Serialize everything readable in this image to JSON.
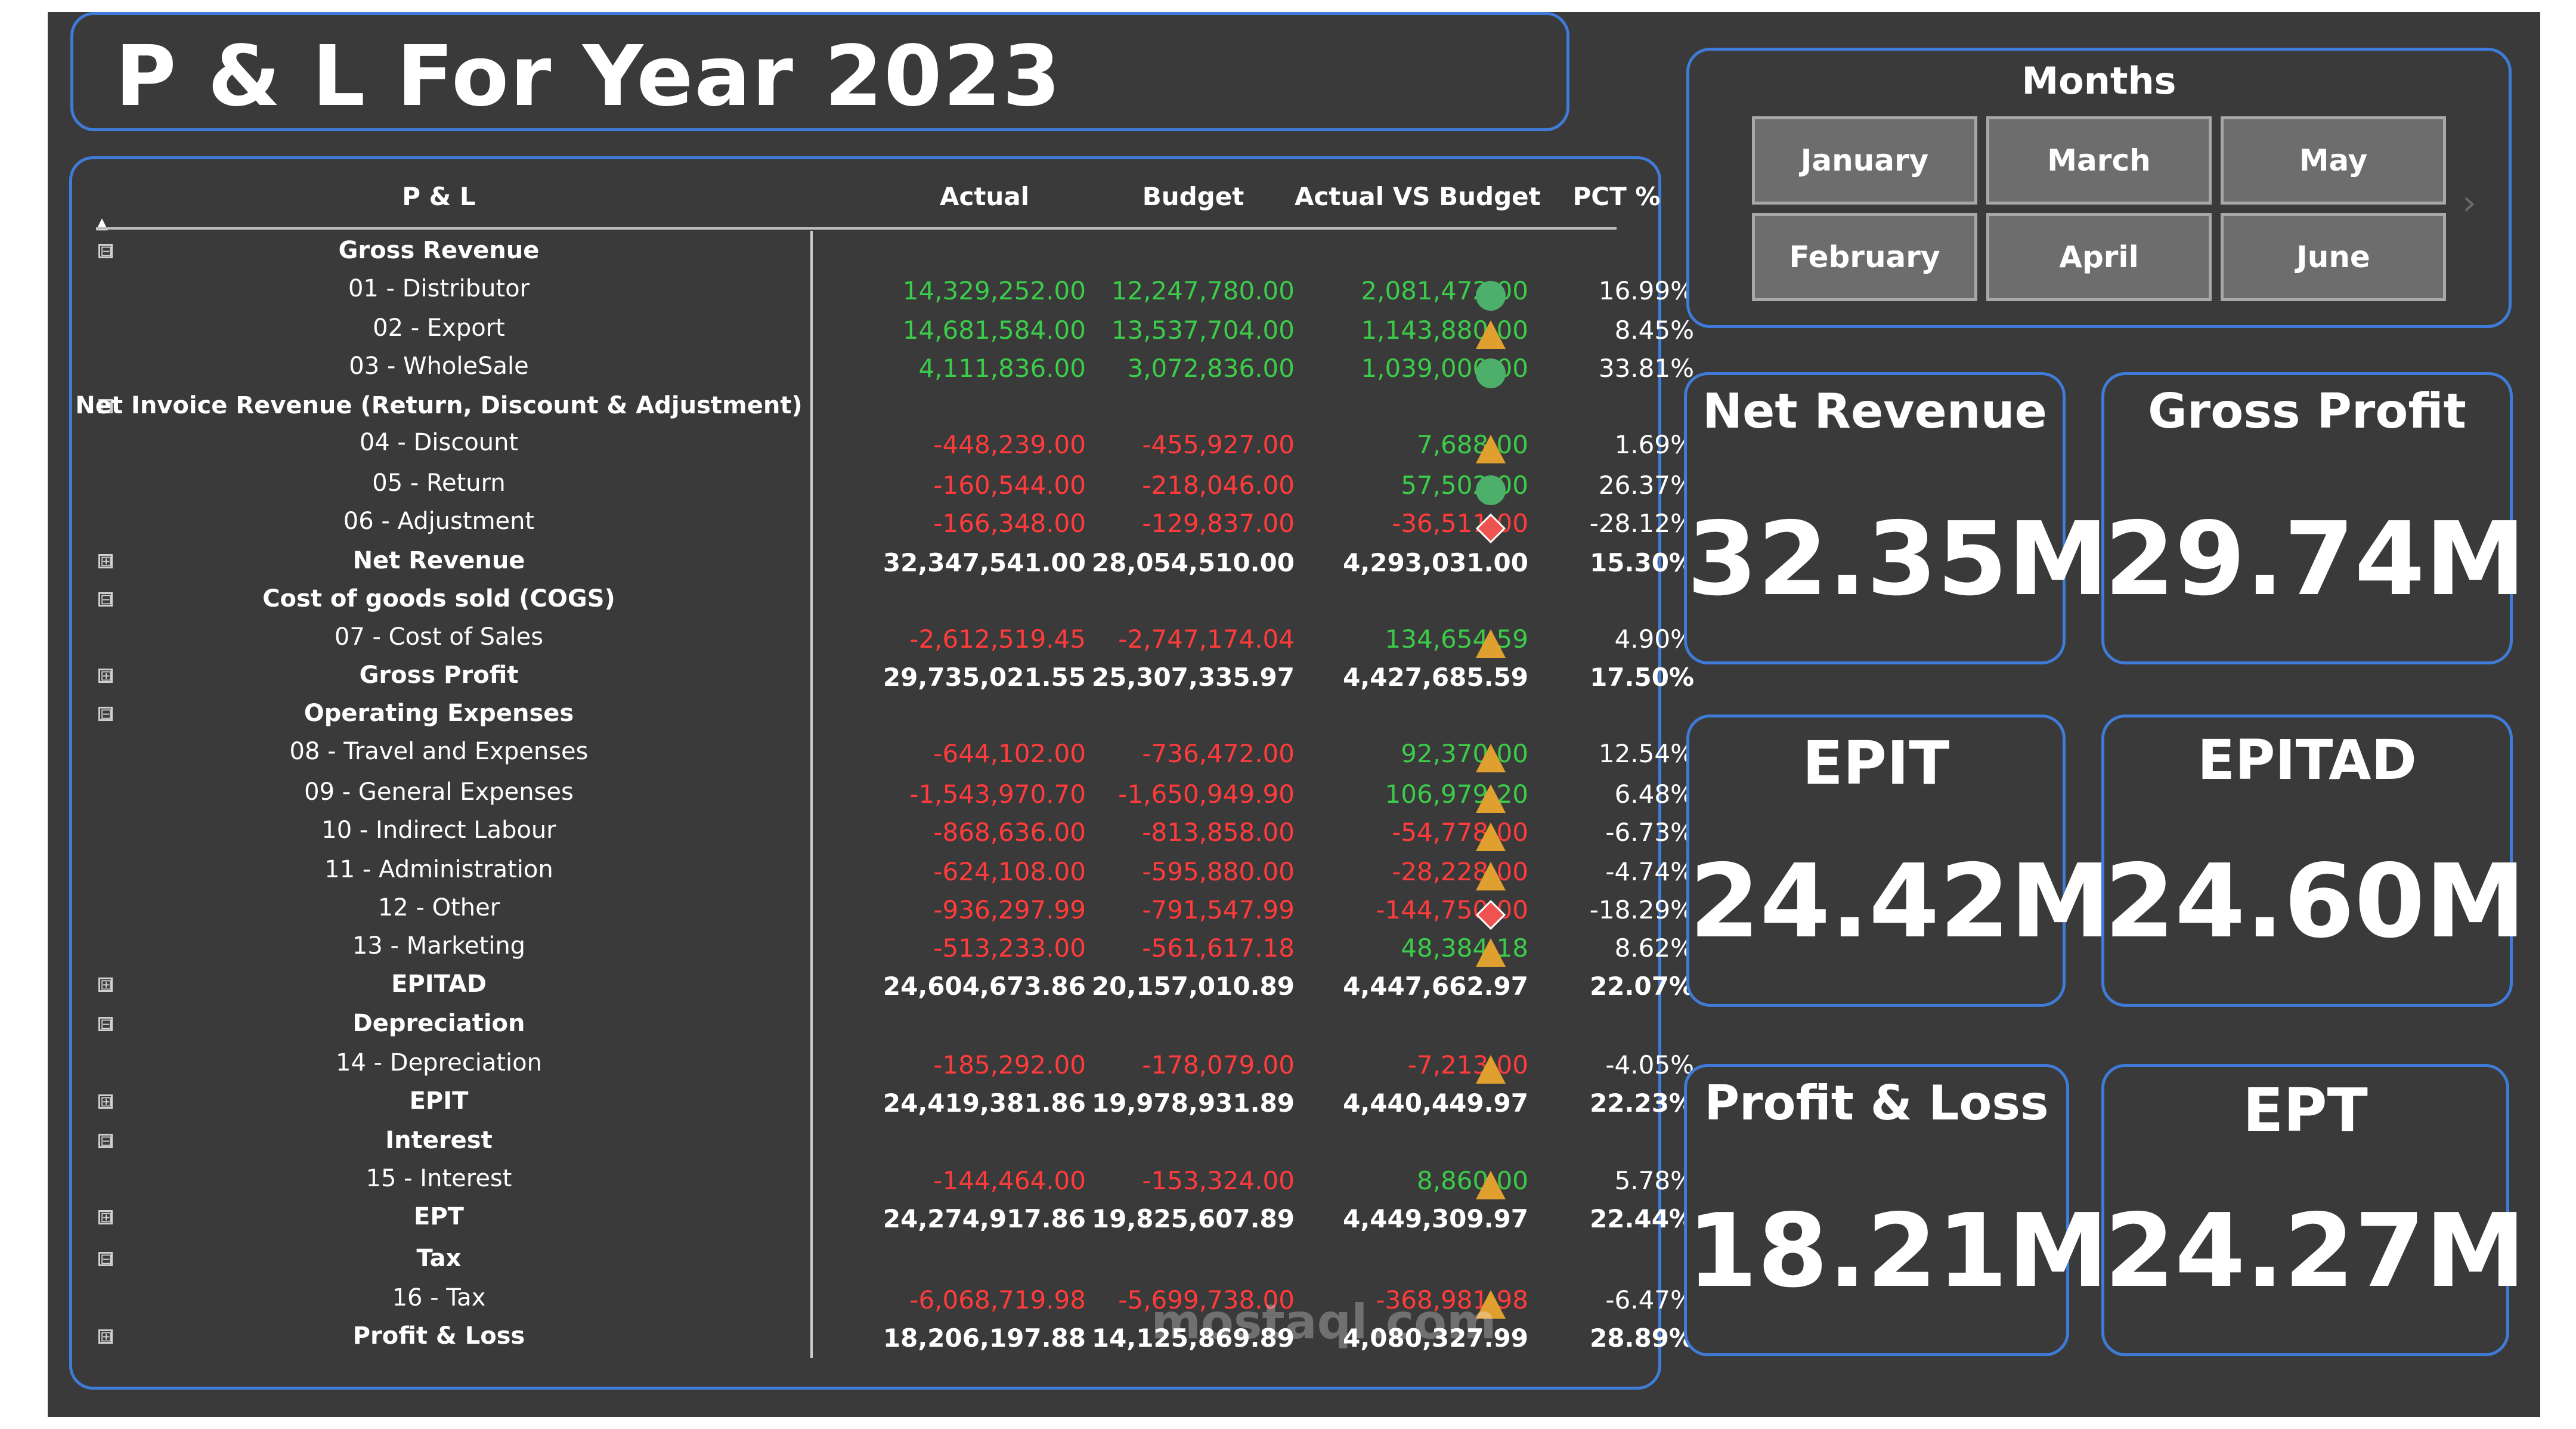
{
  "title": "P & L For Year 2023",
  "table": {
    "headers": [
      "P & L",
      "Actual",
      "Budget",
      "Actual VS Budget",
      "PCT %"
    ],
    "rows": [
      {
        "type": "group",
        "expander": "⊟",
        "label": "Gross Revenue"
      },
      {
        "type": "item",
        "label": "01 - Distributor",
        "actual": "14,329,252.00",
        "budget": "12,247,780.00",
        "avb": "2,081,472.00",
        "pct": "16.99%",
        "indicator": "circle",
        "actual_class": "pos",
        "budget_class": "pos",
        "avb_class": "pos"
      },
      {
        "type": "item",
        "label": "02 - Export",
        "actual": "14,681,584.00",
        "budget": "13,537,704.00",
        "avb": "1,143,880.00",
        "pct": "8.45%",
        "indicator": "triangle",
        "actual_class": "pos",
        "budget_class": "pos",
        "avb_class": "pos"
      },
      {
        "type": "item",
        "label": "03 - WholeSale",
        "actual": "4,111,836.00",
        "budget": "3,072,836.00",
        "avb": "1,039,000.00",
        "pct": "33.81%",
        "indicator": "circle",
        "actual_class": "pos",
        "budget_class": "pos",
        "avb_class": "pos"
      },
      {
        "type": "group",
        "expander": "⊟",
        "label": "Net Invoice Revenue (Return, Discount & Adjustment)"
      },
      {
        "type": "item",
        "label": "04 - Discount",
        "actual": "-448,239.00",
        "budget": "-455,927.00",
        "avb": "7,688.00",
        "pct": "1.69%",
        "indicator": "triangle",
        "actual_class": "neg",
        "budget_class": "neg",
        "avb_class": "pos"
      },
      {
        "type": "item",
        "label": "05 - Return",
        "actual": "-160,544.00",
        "budget": "-218,046.00",
        "avb": "57,502.00",
        "pct": "26.37%",
        "indicator": "circle",
        "actual_class": "neg",
        "budget_class": "neg",
        "avb_class": "pos"
      },
      {
        "type": "item",
        "label": "06 - Adjustment",
        "actual": "-166,348.00",
        "budget": "-129,837.00",
        "avb": "-36,511.00",
        "pct": "-28.12%",
        "indicator": "diamond",
        "actual_class": "neg",
        "budget_class": "neg",
        "avb_class": "neg"
      },
      {
        "type": "total",
        "expander": "⊞",
        "label": "Net Revenue",
        "actual": "32,347,541.00",
        "budget": "28,054,510.00",
        "avb": "4,293,031.00",
        "pct": "15.30%"
      },
      {
        "type": "group",
        "expander": "⊟",
        "label": "Cost of goods sold (COGS)"
      },
      {
        "type": "item",
        "label": "07 - Cost of Sales",
        "actual": "-2,612,519.45",
        "budget": "-2,747,174.04",
        "avb": "134,654.59",
        "pct": "4.90%",
        "indicator": "triangle",
        "actual_class": "neg",
        "budget_class": "neg",
        "avb_class": "pos"
      },
      {
        "type": "total",
        "expander": "⊞",
        "label": "Gross Profit",
        "actual": "29,735,021.55",
        "budget": "25,307,335.97",
        "avb": "4,427,685.59",
        "pct": "17.50%"
      },
      {
        "type": "group",
        "expander": "⊟",
        "label": "Operating Expenses"
      },
      {
        "type": "item",
        "label": "08 - Travel and Expenses",
        "actual": "-644,102.00",
        "budget": "-736,472.00",
        "avb": "92,370.00",
        "pct": "12.54%",
        "indicator": "triangle",
        "actual_class": "neg",
        "budget_class": "neg",
        "avb_class": "pos"
      },
      {
        "type": "item",
        "label": "09 - General Expenses",
        "actual": "-1,543,970.70",
        "budget": "-1,650,949.90",
        "avb": "106,979.20",
        "pct": "6.48%",
        "indicator": "triangle",
        "actual_class": "neg",
        "budget_class": "neg",
        "avb_class": "pos"
      },
      {
        "type": "item",
        "label": "10 - Indirect Labour",
        "actual": "-868,636.00",
        "budget": "-813,858.00",
        "avb": "-54,778.00",
        "pct": "-6.73%",
        "indicator": "triangle",
        "actual_class": "neg",
        "budget_class": "neg",
        "avb_class": "neg"
      },
      {
        "type": "item",
        "label": "11 - Administration",
        "actual": "-624,108.00",
        "budget": "-595,880.00",
        "avb": "-28,228.00",
        "pct": "-4.74%",
        "indicator": "triangle",
        "actual_class": "neg",
        "budget_class": "neg",
        "avb_class": "neg"
      },
      {
        "type": "item",
        "label": "12 - Other",
        "actual": "-936,297.99",
        "budget": "-791,547.99",
        "avb": "-144,750.00",
        "pct": "-18.29%",
        "indicator": "diamond",
        "actual_class": "neg",
        "budget_class": "neg",
        "avb_class": "neg"
      },
      {
        "type": "item",
        "label": "13 - Marketing",
        "actual": "-513,233.00",
        "budget": "-561,617.18",
        "avb": "48,384.18",
        "pct": "8.62%",
        "indicator": "triangle",
        "actual_class": "neg",
        "budget_class": "neg",
        "avb_class": "pos"
      },
      {
        "type": "total",
        "expander": "⊞",
        "label": "EPITAD",
        "actual": "24,604,673.86",
        "budget": "20,157,010.89",
        "avb": "4,447,662.97",
        "pct": "22.07%"
      },
      {
        "type": "group",
        "expander": "⊟",
        "label": "Depreciation"
      },
      {
        "type": "item",
        "label": "14 - Depreciation",
        "actual": "-185,292.00",
        "budget": "-178,079.00",
        "avb": "-7,213.00",
        "pct": "-4.05%",
        "indicator": "triangle",
        "actual_class": "neg",
        "budget_class": "neg",
        "avb_class": "neg"
      },
      {
        "type": "total",
        "expander": "⊞",
        "label": "EPIT",
        "actual": "24,419,381.86",
        "budget": "19,978,931.89",
        "avb": "4,440,449.97",
        "pct": "22.23%"
      },
      {
        "type": "group",
        "expander": "⊟",
        "label": "Interest"
      },
      {
        "type": "item",
        "label": "15 - Interest",
        "actual": "-144,464.00",
        "budget": "-153,324.00",
        "avb": "8,860.00",
        "pct": "5.78%",
        "indicator": "triangle",
        "actual_class": "neg",
        "budget_class": "neg",
        "avb_class": "pos"
      },
      {
        "type": "total",
        "expander": "⊞",
        "label": "EPT",
        "actual": "24,274,917.86",
        "budget": "19,825,607.89",
        "avb": "4,449,309.97",
        "pct": "22.44%"
      },
      {
        "type": "group",
        "expander": "⊟",
        "label": "Tax"
      },
      {
        "type": "item",
        "label": "16 - Tax",
        "actual": "-6,068,719.98",
        "budget": "-5,699,738.00",
        "avb": "-368,981.98",
        "pct": "-6.47%",
        "indicator": "triangle",
        "actual_class": "neg",
        "budget_class": "neg",
        "avb_class": "neg"
      },
      {
        "type": "total",
        "expander": "⊞",
        "label": "Profit & Loss",
        "actual": "18,206,197.88",
        "budget": "14,125,869.89",
        "avb": "4,080,327.99",
        "pct": "28.89%"
      }
    ]
  },
  "months": {
    "title": "Months",
    "buttons": [
      "January",
      "March",
      "May",
      "February",
      "April",
      "June"
    ]
  },
  "kpis": [
    {
      "title": "Net Revenue",
      "value": "32.35M"
    },
    {
      "title": "Gross Profit",
      "value": "29.74M"
    },
    {
      "title": "EPIT",
      "value": "24.42M"
    },
    {
      "title": "EPITAD",
      "value": "24.60M"
    },
    {
      "title": "Profit & Loss",
      "value": "18.21M"
    },
    {
      "title": "EPT",
      "value": "24.27M"
    }
  ],
  "watermark": "mostaql.com",
  "colors": {
    "positive": "#3bcc4a",
    "negative": "#ff3b3b",
    "accent_border": "#3f7bd8",
    "indicator_green": "#4caf6a",
    "indicator_amber": "#e0a030",
    "indicator_red": "#ef5350"
  }
}
